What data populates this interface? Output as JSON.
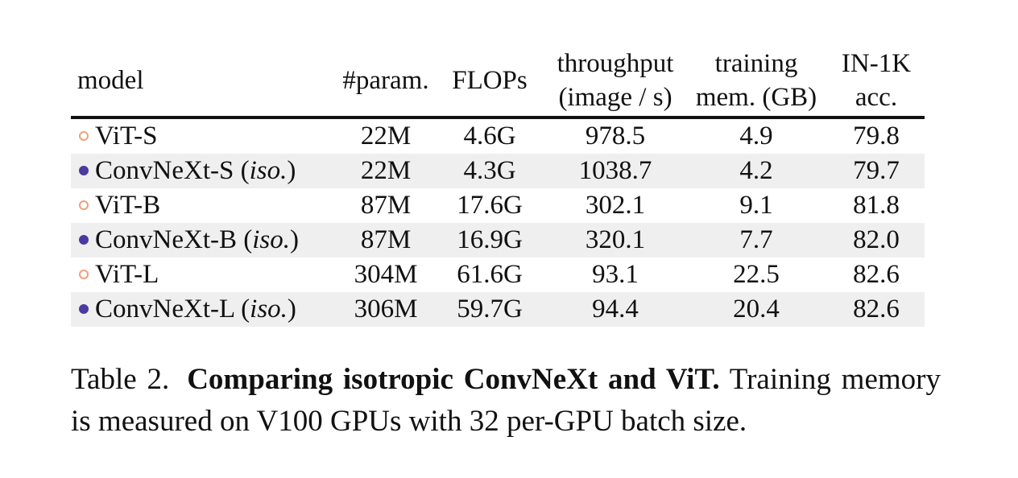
{
  "table": {
    "headers": {
      "model": "model",
      "params": "#param.",
      "flops": "FLOPs",
      "throughput_l1": "throughput",
      "throughput_l2": "(image / s)",
      "mem_l1": "training",
      "mem_l2": "mem. (GB)",
      "acc_l1": "IN-1K",
      "acc_l2": "acc."
    },
    "rows": [
      {
        "marker": "hollow",
        "color": "#f0a07a",
        "name": "ViT-S",
        "iso": "",
        "params": "22M",
        "flops": "4.6G",
        "throughput": "978.5",
        "mem": "4.9",
        "acc": "79.8"
      },
      {
        "marker": "filled",
        "color": "#4b3aa0",
        "name": "ConvNeXt-S (",
        "iso": "iso.",
        "params": "22M",
        "flops": "4.3G",
        "throughput": "1038.7",
        "mem": "4.2",
        "acc": "79.7"
      },
      {
        "marker": "hollow",
        "color": "#f0a07a",
        "name": "ViT-B",
        "iso": "",
        "params": "87M",
        "flops": "17.6G",
        "throughput": "302.1",
        "mem": "9.1",
        "acc": "81.8"
      },
      {
        "marker": "filled",
        "color": "#4b3aa0",
        "name": "ConvNeXt-B (",
        "iso": "iso.",
        "params": "87M",
        "flops": "16.9G",
        "throughput": "320.1",
        "mem": "7.7",
        "acc": "82.0"
      },
      {
        "marker": "hollow",
        "color": "#f0a07a",
        "name": "ViT-L",
        "iso": "",
        "params": "304M",
        "flops": "61.6G",
        "throughput": "93.1",
        "mem": "22.5",
        "acc": "82.6"
      },
      {
        "marker": "filled",
        "color": "#4b3aa0",
        "name": "ConvNeXt-L (",
        "iso": "iso.",
        "params": "306M",
        "flops": "59.7G",
        "throughput": "94.4",
        "mem": "20.4",
        "acc": "82.6"
      }
    ]
  },
  "caption": {
    "label": "Table 2.",
    "bold": "Comparing isotropic ConvNeXt and ViT.",
    "text": " Training memory is measured on V100 GPUs with 32 per-GPU batch size."
  }
}
